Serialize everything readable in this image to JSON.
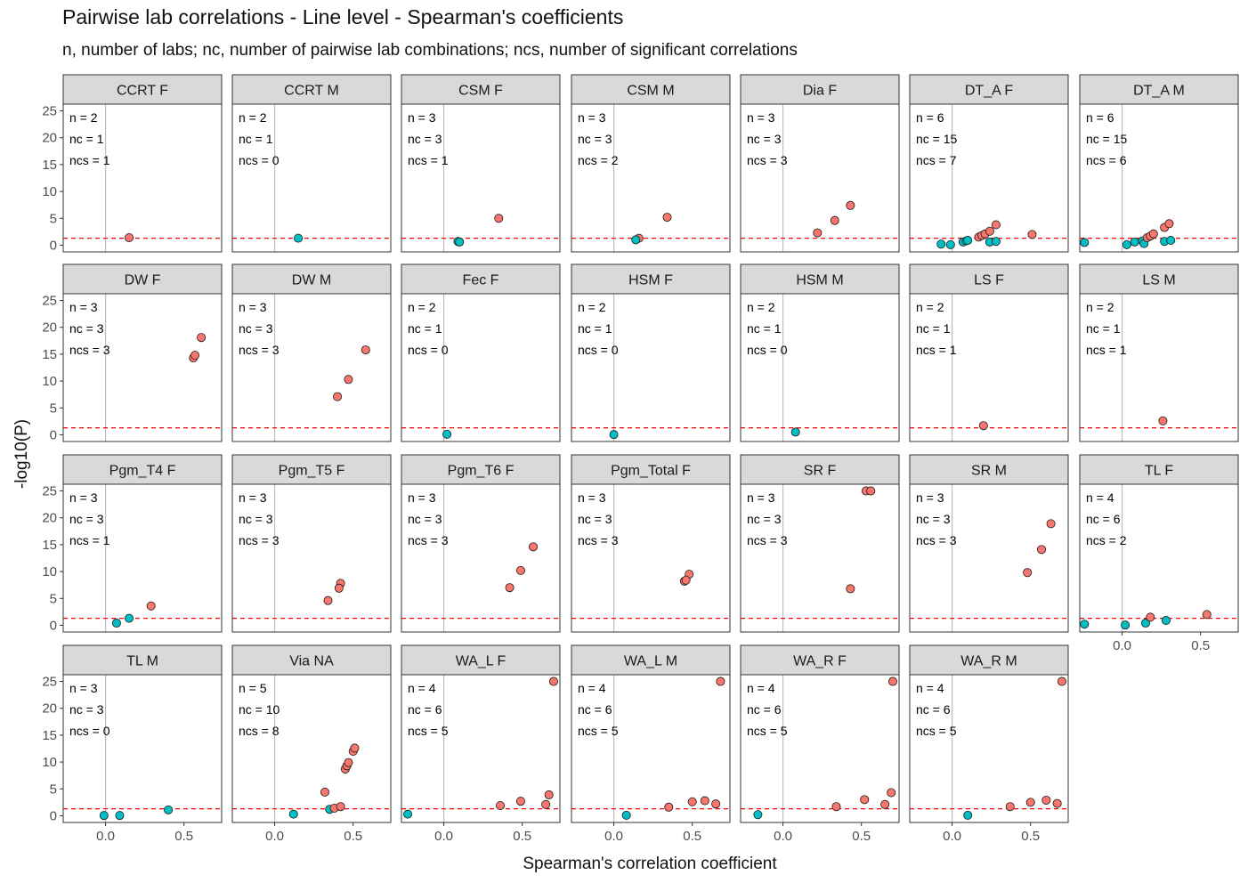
{
  "chart_data": {
    "type": "scatter",
    "title": "Pairwise lab correlations - Line level - Spearman's coefficients",
    "subtitle": "n, number of labs; nc, number of pairwise lab combinations; ncs, number of significant correlations",
    "xlabel": "Spearman's correlation coefficient",
    "ylabel": "-log10(P)",
    "xlim": [
      -0.27,
      0.74
    ],
    "ylim": [
      -1.25,
      26.25
    ],
    "x_ticks": [
      0.0,
      0.5
    ],
    "x_tick_labels": [
      "0.0",
      "0.5"
    ],
    "y_ticks": [
      0,
      5,
      10,
      15,
      20,
      25
    ],
    "y_tick_labels": [
      "0",
      "5",
      "10",
      "15",
      "20",
      "25"
    ],
    "significance_threshold": 1.3,
    "colors": {
      "significant": "#F8766D",
      "not_significant": "#00BFC4",
      "threshold_line": "#FF0000",
      "zero_line": "#BEBEBE",
      "strip_fill": "#D9D9D9"
    },
    "panels": [
      {
        "label": "CCRT F",
        "n": "n = 2",
        "nc": "nc = 1",
        "ncs": "ncs = 1",
        "points": [
          {
            "x": 0.15,
            "y": 1.4,
            "sig": true
          }
        ]
      },
      {
        "label": "CCRT M",
        "n": "n = 2",
        "nc": "nc = 1",
        "ncs": "ncs = 0",
        "points": [
          {
            "x": 0.15,
            "y": 1.3,
            "sig": false
          }
        ]
      },
      {
        "label": "CSM F",
        "n": "n = 3",
        "nc": "nc = 3",
        "ncs": "ncs = 1",
        "points": [
          {
            "x": 0.35,
            "y": 5.0,
            "sig": true
          },
          {
            "x": 0.09,
            "y": 0.7,
            "sig": false
          },
          {
            "x": 0.1,
            "y": 0.6,
            "sig": false
          }
        ]
      },
      {
        "label": "CSM M",
        "n": "n = 3",
        "nc": "nc = 3",
        "ncs": "ncs = 2",
        "points": [
          {
            "x": 0.34,
            "y": 5.2,
            "sig": true
          },
          {
            "x": 0.16,
            "y": 1.3,
            "sig": true
          },
          {
            "x": 0.14,
            "y": 1.0,
            "sig": false
          }
        ]
      },
      {
        "label": "Dia F",
        "n": "n = 3",
        "nc": "nc = 3",
        "ncs": "ncs = 3",
        "points": [
          {
            "x": 0.43,
            "y": 7.4,
            "sig": true
          },
          {
            "x": 0.33,
            "y": 4.6,
            "sig": true
          },
          {
            "x": 0.22,
            "y": 2.3,
            "sig": true
          }
        ]
      },
      {
        "label": "DT_A F",
        "n": "n = 6",
        "nc": "nc = 15",
        "ncs": "ncs = 7",
        "points": [
          {
            "x": -0.07,
            "y": 0.2,
            "sig": false
          },
          {
            "x": -0.01,
            "y": 0.1,
            "sig": false
          },
          {
            "x": 0.07,
            "y": 0.6,
            "sig": false
          },
          {
            "x": 0.09,
            "y": 0.8,
            "sig": false
          },
          {
            "x": 0.1,
            "y": 0.9,
            "sig": false
          },
          {
            "x": 0.24,
            "y": 0.6,
            "sig": false
          },
          {
            "x": 0.28,
            "y": 0.7,
            "sig": false
          },
          {
            "x": 0.17,
            "y": 1.5,
            "sig": true
          },
          {
            "x": 0.19,
            "y": 1.8,
            "sig": true
          },
          {
            "x": 0.21,
            "y": 2.1,
            "sig": true
          },
          {
            "x": 0.24,
            "y": 2.6,
            "sig": true
          },
          {
            "x": 0.28,
            "y": 3.8,
            "sig": true
          },
          {
            "x": 0.51,
            "y": 2.0,
            "sig": true
          }
        ]
      },
      {
        "label": "DT_A M",
        "n": "n = 6",
        "nc": "nc = 15",
        "ncs": "ncs = 6",
        "points": [
          {
            "x": -0.24,
            "y": 0.5,
            "sig": false
          },
          {
            "x": 0.03,
            "y": 0.1,
            "sig": false
          },
          {
            "x": 0.08,
            "y": 0.6,
            "sig": false
          },
          {
            "x": 0.13,
            "y": 0.8,
            "sig": false
          },
          {
            "x": 0.14,
            "y": 0.3,
            "sig": false
          },
          {
            "x": 0.27,
            "y": 0.7,
            "sig": false
          },
          {
            "x": 0.31,
            "y": 0.9,
            "sig": false
          },
          {
            "x": 0.16,
            "y": 1.4,
            "sig": true
          },
          {
            "x": 0.18,
            "y": 1.7,
            "sig": true
          },
          {
            "x": 0.2,
            "y": 2.1,
            "sig": true
          },
          {
            "x": 0.27,
            "y": 3.3,
            "sig": true
          },
          {
            "x": 0.3,
            "y": 4.0,
            "sig": true
          }
        ]
      },
      {
        "label": "DW F",
        "n": "n = 3",
        "nc": "nc = 3",
        "ncs": "ncs = 3",
        "points": [
          {
            "x": 0.61,
            "y": 18.1,
            "sig": true
          },
          {
            "x": 0.56,
            "y": 14.3,
            "sig": true
          },
          {
            "x": 0.57,
            "y": 14.8,
            "sig": true
          }
        ]
      },
      {
        "label": "DW M",
        "n": "n = 3",
        "nc": "nc = 3",
        "ncs": "ncs = 3",
        "points": [
          {
            "x": 0.58,
            "y": 15.8,
            "sig": true
          },
          {
            "x": 0.47,
            "y": 10.3,
            "sig": true
          },
          {
            "x": 0.4,
            "y": 7.1,
            "sig": true
          }
        ]
      },
      {
        "label": "Fec F",
        "n": "n = 2",
        "nc": "nc = 1",
        "ncs": "ncs = 0",
        "points": [
          {
            "x": 0.02,
            "y": 0.1,
            "sig": false
          }
        ]
      },
      {
        "label": "HSM F",
        "n": "n = 2",
        "nc": "nc = 1",
        "ncs": "ncs = 0",
        "points": [
          {
            "x": 0.0,
            "y": 0.05,
            "sig": false
          }
        ]
      },
      {
        "label": "HSM M",
        "n": "n = 2",
        "nc": "nc = 1",
        "ncs": "ncs = 0",
        "points": [
          {
            "x": 0.08,
            "y": 0.5,
            "sig": false
          }
        ]
      },
      {
        "label": "LS F",
        "n": "n = 2",
        "nc": "nc = 1",
        "ncs": "ncs = 1",
        "points": [
          {
            "x": 0.2,
            "y": 1.7,
            "sig": true
          }
        ]
      },
      {
        "label": "LS M",
        "n": "n = 2",
        "nc": "nc = 1",
        "ncs": "ncs = 1",
        "points": [
          {
            "x": 0.26,
            "y": 2.6,
            "sig": true
          }
        ]
      },
      {
        "label": "Pgm_T4 F",
        "n": "n = 3",
        "nc": "nc = 3",
        "ncs": "ncs = 1",
        "points": [
          {
            "x": 0.29,
            "y": 3.6,
            "sig": true
          },
          {
            "x": 0.15,
            "y": 1.3,
            "sig": false
          },
          {
            "x": 0.07,
            "y": 0.4,
            "sig": false
          }
        ]
      },
      {
        "label": "Pgm_T5 F",
        "n": "n = 3",
        "nc": "nc = 3",
        "ncs": "ncs = 3",
        "points": [
          {
            "x": 0.42,
            "y": 7.8,
            "sig": true
          },
          {
            "x": 0.41,
            "y": 6.9,
            "sig": true
          },
          {
            "x": 0.34,
            "y": 4.6,
            "sig": true
          }
        ]
      },
      {
        "label": "Pgm_T6 F",
        "n": "n = 3",
        "nc": "nc = 3",
        "ncs": "ncs = 3",
        "points": [
          {
            "x": 0.57,
            "y": 14.6,
            "sig": true
          },
          {
            "x": 0.49,
            "y": 10.2,
            "sig": true
          },
          {
            "x": 0.42,
            "y": 7.0,
            "sig": true
          }
        ]
      },
      {
        "label": "Pgm_Total F",
        "n": "n = 3",
        "nc": "nc = 3",
        "ncs": "ncs = 3",
        "points": [
          {
            "x": 0.48,
            "y": 9.5,
            "sig": true
          },
          {
            "x": 0.45,
            "y": 8.2,
            "sig": true
          },
          {
            "x": 0.46,
            "y": 8.4,
            "sig": true
          }
        ]
      },
      {
        "label": "SR F",
        "n": "n = 3",
        "nc": "nc = 3",
        "ncs": "ncs = 3",
        "points": [
          {
            "x": 0.53,
            "y": 25.0,
            "sig": true
          },
          {
            "x": 0.56,
            "y": 25.0,
            "sig": true
          },
          {
            "x": 0.43,
            "y": 6.8,
            "sig": true
          }
        ]
      },
      {
        "label": "SR M",
        "n": "n = 3",
        "nc": "nc = 3",
        "ncs": "ncs = 3",
        "points": [
          {
            "x": 0.63,
            "y": 18.9,
            "sig": true
          },
          {
            "x": 0.57,
            "y": 14.1,
            "sig": true
          },
          {
            "x": 0.48,
            "y": 9.8,
            "sig": true
          }
        ]
      },
      {
        "label": "TL F",
        "n": "n = 4",
        "nc": "nc = 6",
        "ncs": "ncs = 2",
        "points": [
          {
            "x": -0.24,
            "y": 0.2,
            "sig": false
          },
          {
            "x": 0.02,
            "y": 0.05,
            "sig": false
          },
          {
            "x": 0.15,
            "y": 0.4,
            "sig": false
          },
          {
            "x": 0.28,
            "y": 0.9,
            "sig": false
          },
          {
            "x": 0.18,
            "y": 1.5,
            "sig": true
          },
          {
            "x": 0.54,
            "y": 2.0,
            "sig": true
          }
        ]
      },
      {
        "label": "TL M",
        "n": "n = 3",
        "nc": "nc = 3",
        "ncs": "ncs = 0",
        "points": [
          {
            "x": -0.01,
            "y": 0.05,
            "sig": false
          },
          {
            "x": 0.09,
            "y": 0.05,
            "sig": false
          },
          {
            "x": 0.4,
            "y": 1.1,
            "sig": false
          }
        ]
      },
      {
        "label": "Via NA",
        "n": "n = 5",
        "nc": "nc = 10",
        "ncs": "ncs = 8",
        "points": [
          {
            "x": 0.12,
            "y": 0.3,
            "sig": false
          },
          {
            "x": 0.35,
            "y": 1.2,
            "sig": false
          },
          {
            "x": 0.38,
            "y": 1.4,
            "sig": true
          },
          {
            "x": 0.42,
            "y": 1.7,
            "sig": true
          },
          {
            "x": 0.32,
            "y": 4.4,
            "sig": true
          },
          {
            "x": 0.45,
            "y": 8.7,
            "sig": true
          },
          {
            "x": 0.46,
            "y": 9.3,
            "sig": true
          },
          {
            "x": 0.47,
            "y": 9.9,
            "sig": true
          },
          {
            "x": 0.5,
            "y": 12.0,
            "sig": true
          },
          {
            "x": 0.51,
            "y": 12.6,
            "sig": true
          }
        ]
      },
      {
        "label": "WA_L F",
        "n": "n = 4",
        "nc": "nc = 6",
        "ncs": "ncs = 5",
        "points": [
          {
            "x": -0.23,
            "y": 0.3,
            "sig": false
          },
          {
            "x": 0.36,
            "y": 1.9,
            "sig": true
          },
          {
            "x": 0.49,
            "y": 2.7,
            "sig": true
          },
          {
            "x": 0.65,
            "y": 2.1,
            "sig": true
          },
          {
            "x": 0.67,
            "y": 3.9,
            "sig": true
          },
          {
            "x": 0.7,
            "y": 25.0,
            "sig": true
          }
        ]
      },
      {
        "label": "WA_L M",
        "n": "n = 4",
        "nc": "nc = 6",
        "ncs": "ncs = 5",
        "points": [
          {
            "x": 0.08,
            "y": 0.1,
            "sig": false
          },
          {
            "x": 0.35,
            "y": 1.6,
            "sig": true
          },
          {
            "x": 0.5,
            "y": 2.6,
            "sig": true
          },
          {
            "x": 0.58,
            "y": 2.8,
            "sig": true
          },
          {
            "x": 0.65,
            "y": 2.2,
            "sig": true
          },
          {
            "x": 0.68,
            "y": 25.0,
            "sig": true
          }
        ]
      },
      {
        "label": "WA_R F",
        "n": "n = 4",
        "nc": "nc = 6",
        "ncs": "ncs = 5",
        "points": [
          {
            "x": -0.16,
            "y": 0.2,
            "sig": false
          },
          {
            "x": 0.34,
            "y": 1.7,
            "sig": true
          },
          {
            "x": 0.52,
            "y": 3.0,
            "sig": true
          },
          {
            "x": 0.65,
            "y": 2.1,
            "sig": true
          },
          {
            "x": 0.69,
            "y": 4.3,
            "sig": true
          },
          {
            "x": 0.7,
            "y": 25.0,
            "sig": true
          }
        ]
      },
      {
        "label": "WA_R M",
        "n": "n = 4",
        "nc": "nc = 6",
        "ncs": "ncs = 5",
        "points": [
          {
            "x": 0.1,
            "y": 0.1,
            "sig": false
          },
          {
            "x": 0.37,
            "y": 1.7,
            "sig": true
          },
          {
            "x": 0.5,
            "y": 2.5,
            "sig": true
          },
          {
            "x": 0.6,
            "y": 2.9,
            "sig": true
          },
          {
            "x": 0.67,
            "y": 2.3,
            "sig": true
          },
          {
            "x": 0.7,
            "y": 25.0,
            "sig": true
          }
        ]
      }
    ]
  }
}
